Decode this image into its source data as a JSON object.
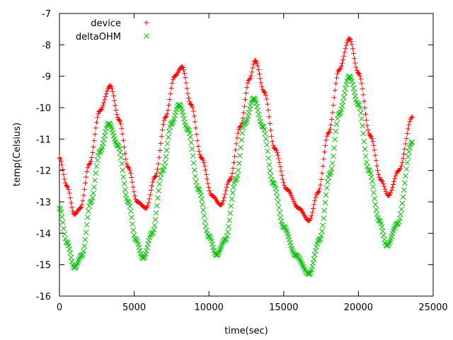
{
  "chart_data": {
    "type": "scatter",
    "xlabel": "time(sec)",
    "ylabel": "temp(Celsius)",
    "xlim": [
      0,
      25000
    ],
    "ylim": [
      -16,
      -7
    ],
    "xticks": [
      0,
      5000,
      10000,
      15000,
      20000,
      25000
    ],
    "yticks": [
      -7,
      -8,
      -9,
      -10,
      -11,
      -12,
      -13,
      -14,
      -15,
      -16
    ],
    "grid": false,
    "legend_position": "top-left",
    "series": [
      {
        "name": "device",
        "color": "#ff0000",
        "marker": "plus",
        "points": [
          [
            0,
            -11.6
          ],
          [
            500,
            -12.5
          ],
          [
            1000,
            -13.4
          ],
          [
            1400,
            -13.2
          ],
          [
            2000,
            -11.8
          ],
          [
            2700,
            -10.1
          ],
          [
            3400,
            -9.3
          ],
          [
            4000,
            -10.4
          ],
          [
            4600,
            -11.9
          ],
          [
            5200,
            -13.0
          ],
          [
            5800,
            -13.2
          ],
          [
            6400,
            -12.2
          ],
          [
            7100,
            -10.3
          ],
          [
            7700,
            -9.0
          ],
          [
            8200,
            -8.7
          ],
          [
            8800,
            -9.9
          ],
          [
            9500,
            -11.6
          ],
          [
            10200,
            -12.8
          ],
          [
            10800,
            -13.1
          ],
          [
            11400,
            -12.3
          ],
          [
            12100,
            -10.6
          ],
          [
            12700,
            -9.1
          ],
          [
            13100,
            -8.5
          ],
          [
            13700,
            -9.5
          ],
          [
            14400,
            -11.3
          ],
          [
            15200,
            -12.6
          ],
          [
            16000,
            -13.2
          ],
          [
            16700,
            -13.6
          ],
          [
            17300,
            -12.7
          ],
          [
            18000,
            -10.8
          ],
          [
            18700,
            -8.8
          ],
          [
            19400,
            -7.8
          ],
          [
            20000,
            -8.9
          ],
          [
            20800,
            -10.9
          ],
          [
            21500,
            -12.3
          ],
          [
            22000,
            -12.8
          ],
          [
            22700,
            -12.0
          ],
          [
            23600,
            -10.3
          ]
        ]
      },
      {
        "name": "deltaOHM",
        "color": "#00c000",
        "marker": "cross",
        "points": [
          [
            0,
            -13.2
          ],
          [
            500,
            -14.3
          ],
          [
            1000,
            -15.1
          ],
          [
            1500,
            -14.7
          ],
          [
            2100,
            -13.0
          ],
          [
            2700,
            -11.4
          ],
          [
            3300,
            -10.5
          ],
          [
            3900,
            -11.2
          ],
          [
            4600,
            -13.0
          ],
          [
            5100,
            -14.2
          ],
          [
            5600,
            -14.8
          ],
          [
            6200,
            -14.0
          ],
          [
            6900,
            -12.0
          ],
          [
            7500,
            -10.5
          ],
          [
            8000,
            -9.9
          ],
          [
            8600,
            -10.7
          ],
          [
            9300,
            -12.6
          ],
          [
            10000,
            -14.1
          ],
          [
            10500,
            -14.7
          ],
          [
            11100,
            -14.2
          ],
          [
            11800,
            -12.3
          ],
          [
            12400,
            -10.5
          ],
          [
            13000,
            -9.7
          ],
          [
            13600,
            -10.6
          ],
          [
            14300,
            -12.4
          ],
          [
            15000,
            -13.8
          ],
          [
            15800,
            -14.7
          ],
          [
            16700,
            -15.3
          ],
          [
            17400,
            -14.2
          ],
          [
            18100,
            -12.1
          ],
          [
            18700,
            -10.2
          ],
          [
            19400,
            -9.0
          ],
          [
            20000,
            -9.9
          ],
          [
            20700,
            -12.0
          ],
          [
            21400,
            -13.6
          ],
          [
            21900,
            -14.4
          ],
          [
            22600,
            -13.7
          ],
          [
            23600,
            -11.1
          ]
        ]
      }
    ]
  }
}
